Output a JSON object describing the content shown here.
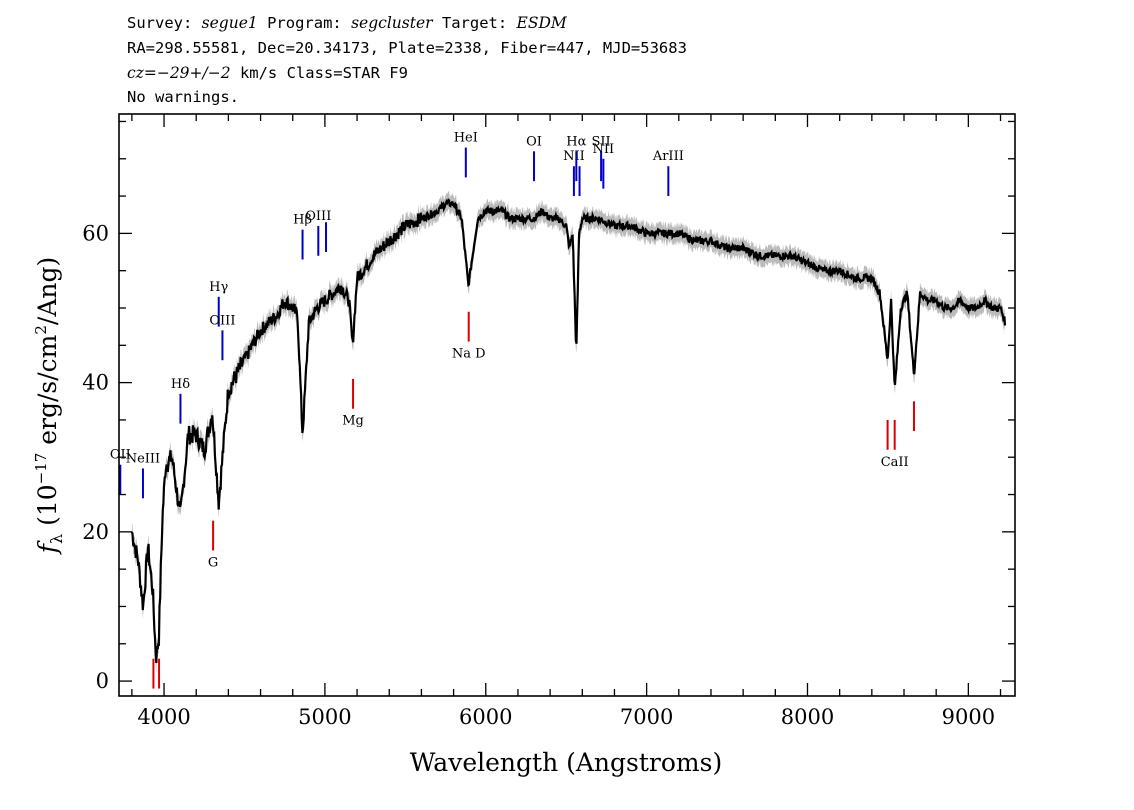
{
  "header": {
    "line1": {
      "survey_label": "Survey:",
      "survey": "segue1",
      "program_label": "Program:",
      "program": "segcluster",
      "target_label": "Target:",
      "target": "ESDM"
    },
    "line2": "RA=298.55581, Dec=20.34173, Plate=2338, Fiber=447, MJD=53683",
    "line3": {
      "cz": "cz=−29+/−2",
      "rest": " km/s Class=STAR F9"
    },
    "line4": "No warnings."
  },
  "chart_data": {
    "type": "line",
    "title": "",
    "xlabel": "Wavelength (Angstroms)",
    "ylabel": {
      "prefix": "f",
      "prefix_sub": "λ",
      "middle": " (10",
      "middle_sup": "−17",
      "units": " erg/s/cm",
      "units_sup": "2",
      "tail": "/Ang)"
    },
    "xlim": [
      3720,
      9290
    ],
    "ylim": [
      -2,
      76
    ],
    "x_ticks": [
      4000,
      5000,
      6000,
      7000,
      8000,
      9000
    ],
    "y_ticks": [
      0,
      20,
      40,
      60
    ],
    "x_minor_step": 200,
    "y_minor_step": 5,
    "grid": false,
    "colors": {
      "spectrum": "#000000",
      "error_band": "#bbbbbb",
      "emission": "#0000cc",
      "absorption": "#dd0000",
      "frame": "#000000"
    },
    "spectrum": {
      "x": [
        3800,
        3840,
        3870,
        3900,
        3930,
        3950,
        3968,
        3990,
        4010,
        4050,
        4101,
        4150,
        4200,
        4250,
        4300,
        4340,
        4383,
        4400,
        4450,
        4500,
        4550,
        4600,
        4650,
        4700,
        4750,
        4800,
        4830,
        4861,
        4900,
        4950,
        5000,
        5050,
        5100,
        5150,
        5172,
        5200,
        5270,
        5300,
        5400,
        5500,
        5600,
        5700,
        5750,
        5800,
        5850,
        5892,
        5950,
        6000,
        6050,
        6100,
        6150,
        6200,
        6250,
        6300,
        6350,
        6400,
        6450,
        6500,
        6520,
        6540,
        6563,
        6580,
        6600,
        6700,
        6800,
        6900,
        7000,
        7100,
        7200,
        7300,
        7400,
        7500,
        7600,
        7700,
        7800,
        7900,
        8000,
        8100,
        8200,
        8300,
        8400,
        8450,
        8498,
        8520,
        8542,
        8580,
        8620,
        8662,
        8700,
        8750,
        8800,
        8850,
        8900,
        8950,
        9000,
        9050,
        9100,
        9150,
        9200,
        9230
      ],
      "y": [
        20,
        16,
        10,
        18,
        12,
        3,
        6,
        22,
        29,
        30,
        22,
        33,
        33,
        31,
        36,
        24,
        35,
        39,
        41,
        43,
        45,
        47,
        48,
        49,
        51,
        50,
        49,
        33,
        48,
        50,
        51,
        52,
        53,
        51,
        45,
        54,
        56,
        57,
        59,
        61,
        62,
        63,
        64,
        64,
        62,
        53,
        62,
        63,
        63,
        63,
        62,
        62,
        62,
        62,
        63,
        62,
        62,
        61,
        58,
        60,
        44,
        60,
        62,
        62,
        61,
        61,
        60,
        60,
        60,
        59,
        59,
        58,
        58,
        57,
        57,
        57,
        56,
        55,
        55,
        54,
        54,
        52,
        43,
        51,
        39,
        50,
        52,
        41,
        52,
        51,
        51,
        50,
        50,
        51,
        50,
        50,
        51,
        50,
        50,
        48
      ],
      "error_band_width": 1.2
    },
    "emission_lines": [
      {
        "name": "OII",
        "x": 3728
      },
      {
        "name": "NeIII",
        "x": 3869
      },
      {
        "name": "Hδ",
        "x": 4102
      },
      {
        "name": "Hγ",
        "x": 4340
      },
      {
        "name": "OIII",
        "x": 4363
      },
      {
        "name": "Hβ",
        "x": 4861
      },
      {
        "name": "OIII",
        "x": 4959
      },
      {
        "name": "",
        "x": 5007
      },
      {
        "name": "HeI",
        "x": 5876
      },
      {
        "name": "OI",
        "x": 6300
      },
      {
        "name": "NII",
        "x": 6548
      },
      {
        "name": "Hα",
        "x": 6563
      },
      {
        "name": "",
        "x": 6583
      },
      {
        "name": "SII",
        "x": 6717
      },
      {
        "name": "NII",
        "x": 6731
      },
      {
        "name": "ArIII",
        "x": 7135
      }
    ],
    "absorption_lines": [
      {
        "name": "",
        "x": 3934
      },
      {
        "name": "",
        "x": 3969
      },
      {
        "name": "G",
        "x": 4305
      },
      {
        "name": "Mg",
        "x": 5175
      },
      {
        "name": "Na D",
        "x": 5894
      },
      {
        "name": "",
        "x": 8498
      },
      {
        "name": "CaII",
        "x": 8542
      },
      {
        "name": "",
        "x": 8662
      }
    ]
  }
}
